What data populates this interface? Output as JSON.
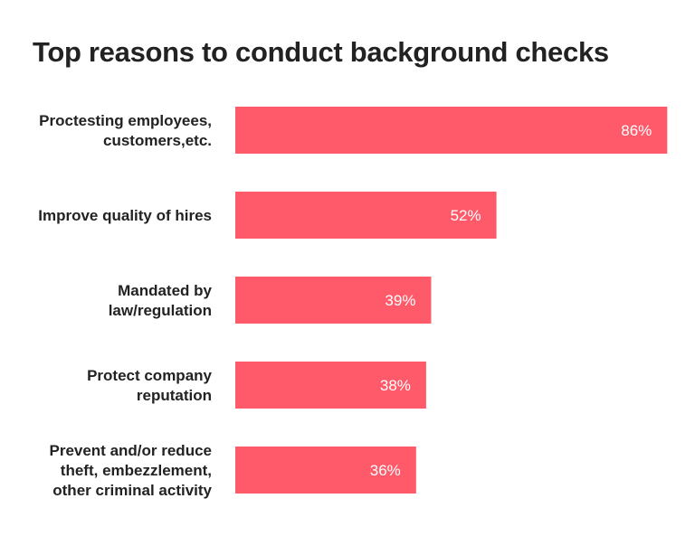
{
  "chart_data": {
    "type": "bar",
    "orientation": "horizontal",
    "title": "Top reasons to conduct background checks",
    "categories": [
      [
        "Proctesting employees,",
        "customers,etc."
      ],
      [
        "Improve quality of hires"
      ],
      [
        "Mandated by",
        "law/regulation"
      ],
      [
        "Protect company",
        "reputation"
      ],
      [
        "Prevent and/or reduce",
        "theft, embezzlement,",
        "other criminal activity"
      ]
    ],
    "values": [
      86,
      52,
      39,
      38,
      36
    ],
    "value_labels": [
      "86%",
      "52%",
      "39%",
      "38%",
      "36%"
    ],
    "unit": "%",
    "xlim": [
      0,
      100
    ],
    "bar_color": "#FF5A6A",
    "grid": false,
    "legend": "none"
  }
}
